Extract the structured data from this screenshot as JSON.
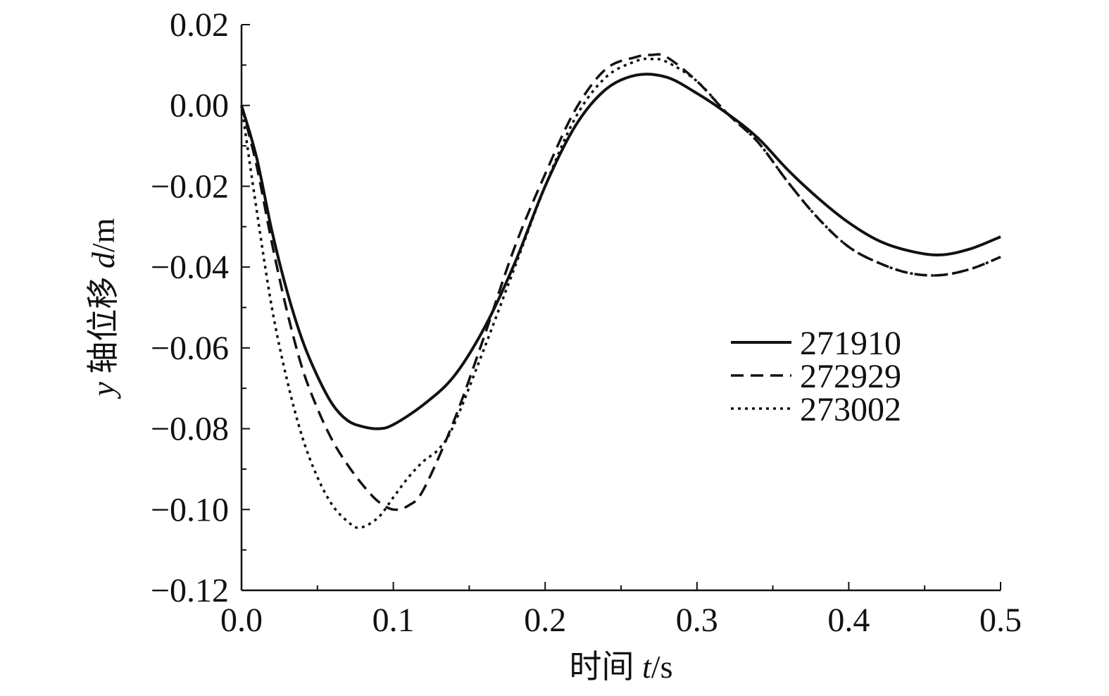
{
  "chart_data": {
    "type": "line",
    "title": "",
    "xlabel": {
      "prefix": "时间 ",
      "var": "t",
      "unit": "/s"
    },
    "ylabel": {
      "var_y": "y",
      "mid": " 轴位移 ",
      "var_d": "d",
      "unit": "/m"
    },
    "xlim": [
      0,
      0.5
    ],
    "ylim": [
      -0.12,
      0.02
    ],
    "xticks": [
      "0.0",
      "0.1",
      "0.2",
      "0.3",
      "0.4",
      "0.5"
    ],
    "yticks": [
      "0.02",
      "0.00",
      "−0.02",
      "−0.04",
      "−0.06",
      "−0.08",
      "−0.10",
      "−0.12"
    ],
    "grid": false,
    "legend_position": "center-right",
    "series": [
      {
        "name": "271910",
        "style": "solid",
        "color": "#111111",
        "x": [
          0,
          0.01,
          0.02,
          0.03,
          0.04,
          0.05,
          0.06,
          0.07,
          0.08,
          0.09,
          0.1,
          0.12,
          0.14,
          0.16,
          0.18,
          0.2,
          0.22,
          0.24,
          0.26,
          0.28,
          0.3,
          0.32,
          0.34,
          0.36,
          0.38,
          0.4,
          0.42,
          0.44,
          0.46,
          0.48,
          0.5
        ],
        "y": [
          0,
          -0.013,
          -0.031,
          -0.046,
          -0.058,
          -0.067,
          -0.074,
          -0.078,
          -0.0795,
          -0.08,
          -0.079,
          -0.074,
          -0.067,
          -0.055,
          -0.039,
          -0.02,
          -0.005,
          0.004,
          0.0075,
          0.007,
          0.003,
          -0.002,
          -0.008,
          -0.016,
          -0.023,
          -0.029,
          -0.0335,
          -0.036,
          -0.037,
          -0.0355,
          -0.0325
        ]
      },
      {
        "name": "272929",
        "style": "dashed",
        "color": "#111111",
        "x": [
          0,
          0.01,
          0.02,
          0.03,
          0.04,
          0.05,
          0.06,
          0.07,
          0.08,
          0.09,
          0.1,
          0.11,
          0.12,
          0.14,
          0.16,
          0.18,
          0.2,
          0.22,
          0.24,
          0.26,
          0.27,
          0.28,
          0.3,
          0.32,
          0.34,
          0.36,
          0.38,
          0.4,
          0.42,
          0.44,
          0.46,
          0.48,
          0.5
        ],
        "y": [
          0,
          -0.015,
          -0.034,
          -0.051,
          -0.065,
          -0.075,
          -0.083,
          -0.089,
          -0.094,
          -0.098,
          -0.1,
          -0.099,
          -0.095,
          -0.078,
          -0.057,
          -0.035,
          -0.017,
          -0.001,
          0.009,
          0.012,
          0.0125,
          0.012,
          0.006,
          -0.002,
          -0.009,
          -0.019,
          -0.028,
          -0.035,
          -0.039,
          -0.0415,
          -0.042,
          -0.0405,
          -0.0375
        ]
      },
      {
        "name": "273002",
        "style": "dotted",
        "color": "#111111",
        "x": [
          0,
          0.01,
          0.02,
          0.03,
          0.04,
          0.05,
          0.06,
          0.07,
          0.078,
          0.09,
          0.1,
          0.11,
          0.12,
          0.13,
          0.14,
          0.16,
          0.18,
          0.2,
          0.22,
          0.24,
          0.26,
          0.27,
          0.28,
          0.3,
          0.32,
          0.34,
          0.36,
          0.38,
          0.4,
          0.42,
          0.44,
          0.46,
          0.48,
          0.5
        ],
        "y": [
          0,
          -0.026,
          -0.05,
          -0.068,
          -0.082,
          -0.092,
          -0.099,
          -0.103,
          -0.1045,
          -0.102,
          -0.097,
          -0.092,
          -0.088,
          -0.085,
          -0.079,
          -0.06,
          -0.04,
          -0.02,
          -0.003,
          0.007,
          0.011,
          0.0115,
          0.0108,
          0.006,
          -0.002,
          -0.009,
          -0.019,
          -0.028,
          -0.035,
          -0.039,
          -0.0415,
          -0.042,
          -0.0405,
          -0.0375
        ]
      }
    ]
  }
}
